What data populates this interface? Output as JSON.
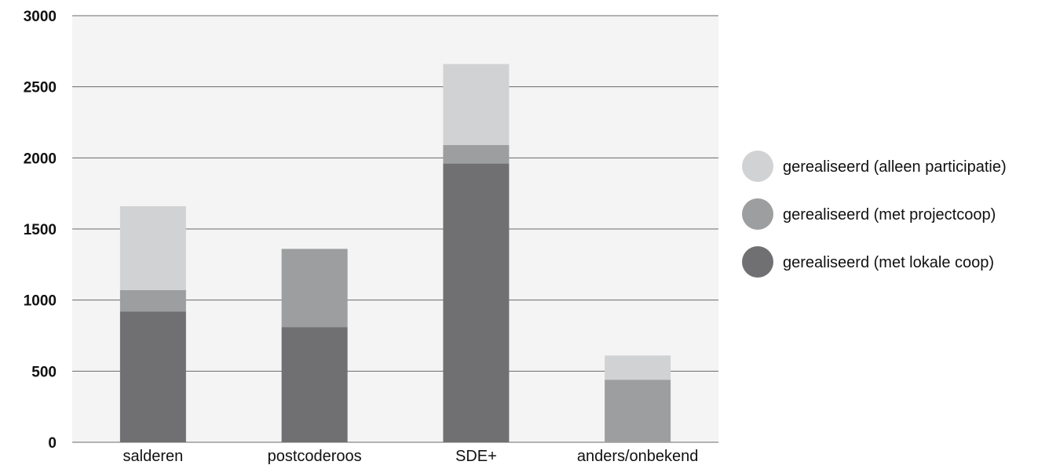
{
  "chart_data": {
    "type": "bar",
    "stacked": true,
    "categories": [
      "salderen",
      "postcoderoos",
      "SDE+",
      "anders/onbekend"
    ],
    "series": [
      {
        "name": "gerealiseerd (met lokale coop)",
        "color": "#707072",
        "values": [
          920,
          810,
          1960,
          0
        ]
      },
      {
        "name": "gerealiseerd (met projectcoop)",
        "color": "#9d9e9f",
        "values": [
          150,
          550,
          130,
          440
        ]
      },
      {
        "name": "gerealiseerd (alleen participatie)",
        "color": "#d1d2d3",
        "values": [
          590,
          0,
          570,
          170
        ]
      }
    ],
    "legend_order": [
      2,
      1,
      0
    ],
    "yticks": [
      0,
      500,
      1000,
      1500,
      2000,
      2500,
      3000
    ],
    "ylim": [
      0,
      3000
    ],
    "grid": true,
    "legend_position": "right",
    "title": "",
    "xlabel": "",
    "ylabel": ""
  }
}
